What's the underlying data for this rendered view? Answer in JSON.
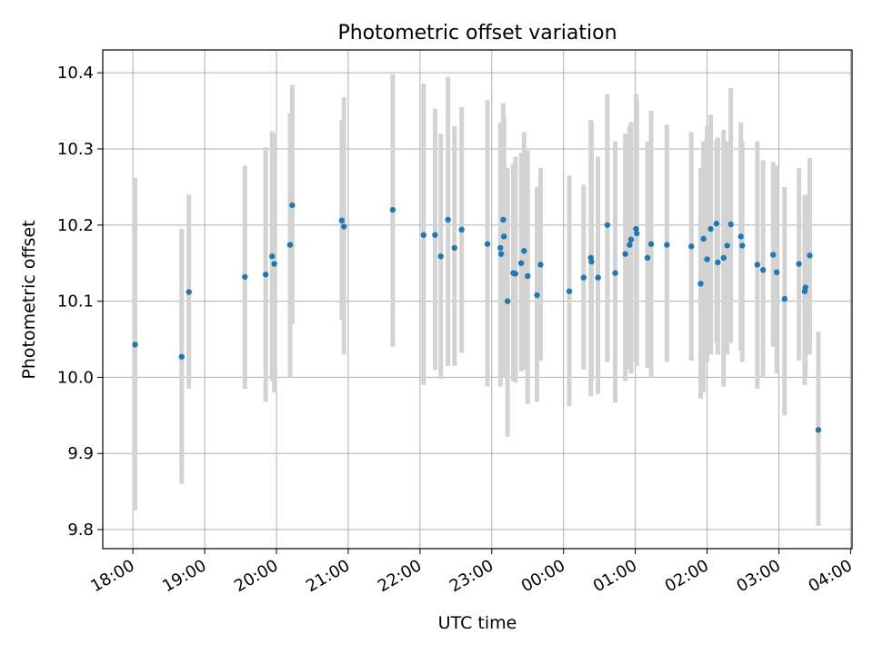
{
  "chart_data": {
    "type": "scatter",
    "title": "Photometric offset variation",
    "xlabel": "UTC time",
    "ylabel": "Photometric offset",
    "x_ticks": [
      "18:00",
      "19:00",
      "20:00",
      "21:00",
      "22:00",
      "23:00",
      "00:00",
      "01:00",
      "02:00",
      "03:00",
      "04:00"
    ],
    "y_ticks": [
      "9.8",
      "9.9",
      "10.0",
      "10.1",
      "10.2",
      "10.3",
      "10.4"
    ],
    "ylim": [
      9.775,
      10.43
    ],
    "xlim_hours": [
      17.58,
      28.02
    ],
    "grid": true,
    "point_color": "#1f77b4",
    "errorbar_color": "#d3d3d3",
    "series": [
      {
        "x_hours": [
          18.03,
          18.68,
          18.78,
          19.56,
          19.85,
          19.94,
          19.97,
          20.19,
          20.22,
          20.91,
          20.94,
          21.62,
          22.05,
          22.21,
          22.29,
          22.39,
          22.48,
          22.58,
          22.94,
          23.12,
          23.13,
          23.16,
          23.17,
          23.22,
          23.3,
          23.33,
          23.41,
          23.45,
          23.5,
          23.63,
          23.68,
          24.08,
          24.28,
          24.38,
          24.39,
          24.48,
          24.61,
          24.72,
          24.86,
          24.92,
          24.94,
          25.01,
          25.02,
          25.17,
          25.22,
          25.44,
          25.78,
          25.91,
          25.95,
          26.0,
          26.05,
          26.13,
          26.15,
          26.23,
          26.28,
          26.33,
          26.47,
          26.49,
          26.7,
          26.78,
          26.92,
          26.97,
          27.08,
          27.28,
          27.36,
          27.37,
          27.43,
          27.55
        ],
        "y": [
          10.043,
          10.027,
          10.112,
          10.132,
          10.135,
          10.159,
          10.149,
          10.174,
          10.226,
          10.206,
          10.198,
          10.22,
          10.187,
          10.187,
          10.159,
          10.207,
          10.17,
          10.194,
          10.175,
          10.17,
          10.162,
          10.207,
          10.185,
          10.1,
          10.137,
          10.136,
          10.15,
          10.166,
          10.133,
          10.108,
          10.148,
          10.113,
          10.131,
          10.157,
          10.152,
          10.131,
          10.2,
          10.137,
          10.162,
          10.174,
          10.181,
          10.195,
          10.189,
          10.157,
          10.175,
          10.174,
          10.172,
          10.123,
          10.182,
          10.155,
          10.195,
          10.202,
          10.151,
          10.157,
          10.173,
          10.201,
          10.185,
          10.173,
          10.148,
          10.141,
          10.161,
          10.138,
          10.103,
          10.149,
          10.113,
          10.118,
          10.16,
          9.931
        ],
        "yerr_low": [
          9.825,
          9.86,
          9.985,
          9.985,
          9.968,
          9.995,
          9.98,
          10.0,
          10.07,
          10.075,
          10.03,
          10.04,
          9.99,
          10.01,
          9.998,
          10.015,
          10.015,
          10.032,
          9.988,
          9.988,
          10.045,
          10.05,
          10.0,
          9.922,
          9.995,
          9.993,
          10.008,
          10.01,
          9.965,
          9.968,
          10.022,
          9.962,
          10.01,
          9.975,
          9.995,
          9.978,
          10.02,
          9.967,
          9.995,
          10.01,
          10.005,
          10.02,
          10.015,
          10.012,
          10.0,
          10.02,
          10.022,
          9.972,
          9.98,
          10.02,
          10.03,
          10.045,
          10.03,
          9.988,
          10.03,
          10.045,
          10.035,
          10.02,
          9.985,
          10.0,
          10.04,
          10.005,
          9.95,
          10.022,
          9.99,
          10.0,
          10.03,
          9.805
        ],
        "yerr_high": [
          10.262,
          10.195,
          10.24,
          10.278,
          10.302,
          10.323,
          10.32,
          10.347,
          10.384,
          10.338,
          10.368,
          10.398,
          10.386,
          10.353,
          10.32,
          10.395,
          10.33,
          10.355,
          10.364,
          10.335,
          10.28,
          10.36,
          10.342,
          10.275,
          10.28,
          10.29,
          10.295,
          10.322,
          10.298,
          10.25,
          10.275,
          10.265,
          10.253,
          10.338,
          10.335,
          10.29,
          10.372,
          10.31,
          10.32,
          10.33,
          10.335,
          10.372,
          10.365,
          10.31,
          10.35,
          10.332,
          10.322,
          10.275,
          10.31,
          10.33,
          10.345,
          10.312,
          10.315,
          10.325,
          10.31,
          10.38,
          10.335,
          10.31,
          10.31,
          10.285,
          10.283,
          10.278,
          10.25,
          10.275,
          10.237,
          10.24,
          10.288,
          10.06
        ]
      }
    ]
  }
}
